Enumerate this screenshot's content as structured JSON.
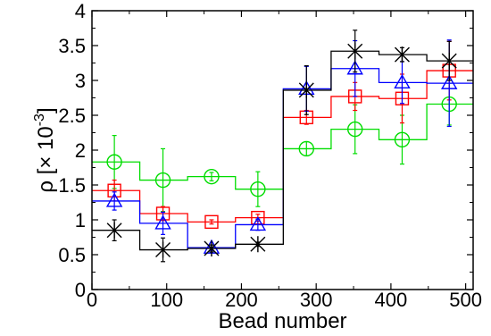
{
  "chart_data": {
    "type": "line",
    "title": "",
    "xlabel": "Bead number",
    "ylabel": {
      "base": "ρ [× 10",
      "exponent": "-3",
      "close": "]"
    },
    "xlim": [
      0,
      510
    ],
    "ylim": [
      0,
      4
    ],
    "x_ticks": [
      0,
      100,
      200,
      300,
      400,
      500
    ],
    "x_tick_labels": [
      "0",
      "100",
      "200",
      "300",
      "400",
      "500"
    ],
    "y_ticks": [
      0,
      0.5,
      1,
      1.5,
      2,
      2.5,
      3,
      3.5,
      4
    ],
    "y_tick_labels": [
      "0",
      "0.5",
      "1",
      "1.5",
      "2",
      "2.5",
      "3",
      "3.5",
      "4"
    ],
    "grid": false,
    "legend": "none",
    "step_edges": [
      0,
      64,
      128,
      192,
      256,
      320,
      384,
      448,
      510
    ],
    "x": [
      30,
      95,
      160,
      222,
      287,
      352,
      415,
      478
    ],
    "series": [
      {
        "marker": "x-star",
        "color": "#000000",
        "values": [
          0.85,
          0.57,
          0.59,
          0.65,
          2.86,
          3.42,
          3.37,
          3.28
        ],
        "errors": [
          0.15,
          0.17,
          0.05,
          0.03,
          0.35,
          0.3,
          0.1,
          0.28
        ]
      },
      {
        "marker": "triangle",
        "color": "#0000ff",
        "values": [
          1.27,
          0.95,
          0.6,
          0.93,
          2.88,
          3.17,
          2.97,
          2.96
        ],
        "errors": [
          0.13,
          0.16,
          0.04,
          0.08,
          0.32,
          0.4,
          0.3,
          0.62
        ]
      },
      {
        "marker": "square",
        "color": "#ff0000",
        "values": [
          1.42,
          1.09,
          0.97,
          1.03,
          2.47,
          2.77,
          2.74,
          3.14
        ],
        "errors": [
          0.15,
          0.1,
          0.03,
          0.05,
          0.1,
          0.2,
          0.35,
          0.42
        ]
      },
      {
        "marker": "circle",
        "color": "#00dd00",
        "values": [
          1.83,
          1.57,
          1.62,
          1.44,
          2.02,
          2.3,
          2.15,
          2.66
        ],
        "errors": [
          0.38,
          0.45,
          0.06,
          0.25,
          0.1,
          0.35,
          0.35,
          0.3
        ]
      }
    ]
  }
}
